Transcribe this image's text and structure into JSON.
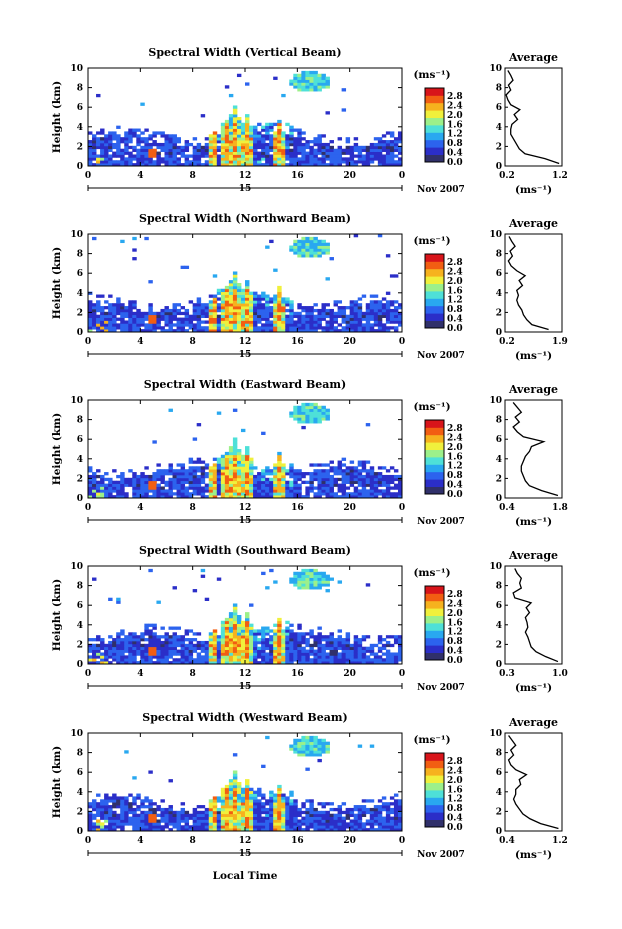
{
  "figure": {
    "xlabel": "Local Time",
    "date_label": "Nov 2007",
    "day_label": "15",
    "unit_label": "(ms⁻¹)",
    "ylabel": "Height (km)",
    "average_title": "Average",
    "average_xlabel": "(ms⁻¹)"
  },
  "colorscale": {
    "stops": [
      "#30306a",
      "#2b2ec8",
      "#2c63ee",
      "#29a8f0",
      "#4ee0d8",
      "#9cf08a",
      "#f0f03c",
      "#f6b21e",
      "#f25e12",
      "#d8141a"
    ],
    "tick_labels": [
      "0.0",
      "0.4",
      "0.8",
      "1.2",
      "1.6",
      "2.0",
      "2.4",
      "2.8"
    ]
  },
  "chart_data": [
    {
      "type": "heatmap",
      "title": "Spectral Width (Vertical Beam)",
      "xlim": [
        0,
        24
      ],
      "ylim": [
        0,
        10
      ],
      "x_ticks": [
        "0",
        "4",
        "8",
        "12",
        "16",
        "20",
        "0"
      ],
      "y_ticks": [
        "0",
        "2",
        "4",
        "6",
        "8",
        "10"
      ],
      "colorbar_ticks": [
        "0.0",
        "0.4",
        "0.8",
        "1.2",
        "1.6",
        "2.0",
        "2.4",
        "2.8"
      ],
      "profile": {
        "x_ticks": [
          "0.2",
          "1.2"
        ],
        "xlim": [
          0.2,
          1.2
        ],
        "heights": [
          0,
          0.5,
          1,
          1.5,
          2,
          2.5,
          3,
          3.5,
          4,
          4.5,
          5,
          5.5,
          6,
          6.5,
          7,
          7.5,
          8,
          8.5,
          9,
          9.5
        ],
        "values": [
          1.15,
          0.9,
          0.55,
          0.45,
          0.4,
          0.35,
          0.3,
          0.3,
          0.32,
          0.42,
          0.36,
          0.46,
          0.3,
          0.25,
          0.22,
          0.3,
          0.26,
          0.34,
          0.3,
          0.25
        ]
      }
    },
    {
      "type": "heatmap",
      "title": "Spectral Width (Northward Beam)",
      "xlim": [
        0,
        24
      ],
      "ylim": [
        0,
        10
      ],
      "x_ticks": [
        "0",
        "4",
        "8",
        "12",
        "16",
        "20",
        "0"
      ],
      "y_ticks": [
        "0",
        "2",
        "4",
        "6",
        "8",
        "10"
      ],
      "colorbar_ticks": [
        "0.0",
        "0.4",
        "0.8",
        "1.2",
        "1.6",
        "2.0",
        "2.4",
        "2.8"
      ],
      "profile": {
        "x_ticks": [
          "0.2",
          "1.9"
        ],
        "xlim": [
          0.2,
          1.9
        ],
        "heights": [
          0,
          0.5,
          1,
          1.5,
          2,
          2.5,
          3,
          3.5,
          4,
          4.5,
          5,
          5.5,
          6,
          6.5,
          7,
          7.5,
          8,
          8.5,
          9,
          9.5
        ],
        "values": [
          1.5,
          1.0,
          0.85,
          0.75,
          0.7,
          0.6,
          0.55,
          0.6,
          0.55,
          0.72,
          0.62,
          0.8,
          0.55,
          0.38,
          0.3,
          0.42,
          0.35,
          0.5,
          0.4,
          0.32
        ]
      }
    },
    {
      "type": "heatmap",
      "title": "Spectral Width (Eastward Beam)",
      "xlim": [
        0,
        24
      ],
      "ylim": [
        0,
        10
      ],
      "x_ticks": [
        "0",
        "4",
        "8",
        "12",
        "16",
        "20",
        "0"
      ],
      "y_ticks": [
        "0",
        "2",
        "4",
        "6",
        "8",
        "10"
      ],
      "colorbar_ticks": [
        "0.0",
        "0.4",
        "0.8",
        "1.2",
        "1.6",
        "2.0",
        "2.4",
        "2.8"
      ],
      "profile": {
        "x_ticks": [
          "0.4",
          "1.8"
        ],
        "xlim": [
          0.4,
          1.8
        ],
        "heights": [
          0,
          0.5,
          1,
          1.5,
          2,
          2.5,
          3,
          3.5,
          4,
          4.5,
          5,
          5.5,
          6,
          6.5,
          7,
          7.5,
          8,
          8.5,
          9,
          9.5
        ],
        "values": [
          1.7,
          1.3,
          1.0,
          0.9,
          0.85,
          0.8,
          0.8,
          0.85,
          0.9,
          1.0,
          1.05,
          1.35,
          0.85,
          0.7,
          0.6,
          0.75,
          0.65,
          0.8,
          0.7,
          0.6
        ]
      }
    },
    {
      "type": "heatmap",
      "title": "Spectral Width (Southward Beam)",
      "xlim": [
        0,
        24
      ],
      "ylim": [
        0,
        10
      ],
      "x_ticks": [
        "0",
        "4",
        "8",
        "12",
        "16",
        "20",
        "0"
      ],
      "y_ticks": [
        "0",
        "2",
        "4",
        "6",
        "8",
        "10"
      ],
      "colorbar_ticks": [
        "0.0",
        "0.4",
        "0.8",
        "1.2",
        "1.6",
        "2.0",
        "2.4",
        "2.8"
      ],
      "profile": {
        "x_ticks": [
          "0.3",
          "1.0"
        ],
        "xlim": [
          0.3,
          1.0
        ],
        "heights": [
          0,
          0.5,
          1,
          1.5,
          2,
          2.5,
          3,
          3.5,
          4,
          4.5,
          5,
          5.5,
          6,
          6.5,
          7,
          7.5,
          8,
          8.5,
          9,
          9.5
        ],
        "values": [
          0.95,
          0.8,
          0.68,
          0.62,
          0.6,
          0.58,
          0.55,
          0.58,
          0.57,
          0.55,
          0.6,
          0.56,
          0.62,
          0.42,
          0.4,
          0.5,
          0.48,
          0.5,
          0.45,
          0.42
        ]
      }
    },
    {
      "type": "heatmap",
      "title": "Spectral Width (Westward Beam)",
      "xlim": [
        0,
        24
      ],
      "ylim": [
        0,
        10
      ],
      "x_ticks": [
        "0",
        "4",
        "8",
        "12",
        "16",
        "20",
        "0"
      ],
      "y_ticks": [
        "0",
        "2",
        "4",
        "6",
        "8",
        "10"
      ],
      "colorbar_ticks": [
        "0.0",
        "0.4",
        "0.8",
        "1.2",
        "1.6",
        "2.0",
        "2.4",
        "2.8"
      ],
      "profile": {
        "x_ticks": [
          "0.4",
          "1.2"
        ],
        "xlim": [
          0.4,
          1.2
        ],
        "heights": [
          0,
          0.5,
          1,
          1.5,
          2,
          2.5,
          3,
          3.5,
          4,
          4.5,
          5,
          5.5,
          6,
          6.5,
          7,
          7.5,
          8,
          8.5,
          9,
          9.5
        ],
        "values": [
          1.15,
          0.9,
          0.75,
          0.65,
          0.6,
          0.55,
          0.52,
          0.55,
          0.55,
          0.62,
          0.6,
          0.7,
          0.55,
          0.48,
          0.45,
          0.52,
          0.48,
          0.55,
          0.5,
          0.45
        ]
      }
    }
  ]
}
